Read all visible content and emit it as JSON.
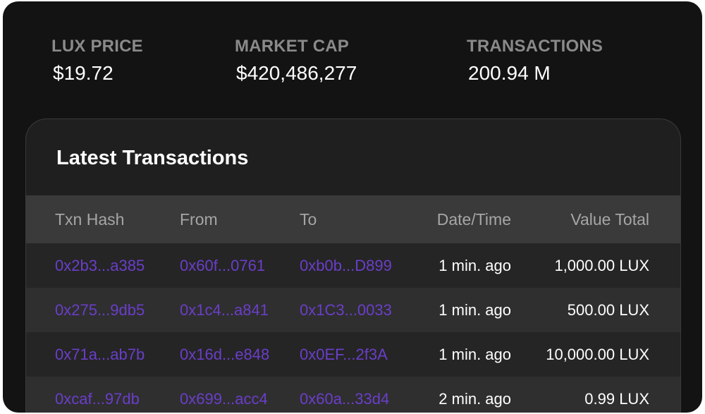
{
  "stats": {
    "price": {
      "label": "LUX PRICE",
      "value": "$19.72"
    },
    "market_cap": {
      "label": "MARKET CAP",
      "value": "$420,486,277"
    },
    "transactions": {
      "label": "TRANSACTIONS",
      "value": "200.94 M"
    }
  },
  "latest": {
    "title": "Latest Transactions",
    "columns": {
      "hash": "Txn Hash",
      "from": "From",
      "to": "To",
      "date": "Date/Time",
      "value": "Value Total"
    },
    "rows": [
      {
        "hash": "0x2b3...a385",
        "from": "0x60f...0761",
        "to": "0xb0b...D899",
        "date": "1 min. ago",
        "value": "1,000.00 LUX"
      },
      {
        "hash": "0x275...9db5",
        "from": "0x1c4...a841",
        "to": "0x1C3...0033",
        "date": "1 min. ago",
        "value": "500.00 LUX"
      },
      {
        "hash": "0x71a...ab7b",
        "from": "0x16d...e848",
        "to": "0x0EF...2f3A",
        "date": "1 min. ago",
        "value": "10,000.00 LUX"
      },
      {
        "hash": "0xcaf...97db",
        "from": "0x699...acc4",
        "to": "0x60a...33d4",
        "date": "2 min. ago",
        "value": "0.99 LUX"
      }
    ]
  },
  "colors": {
    "background": "#131313",
    "card": "#1f1f1f",
    "header_row": "#3a3a3a",
    "link": "#6a3ec9",
    "label": "#8a8a8a"
  }
}
